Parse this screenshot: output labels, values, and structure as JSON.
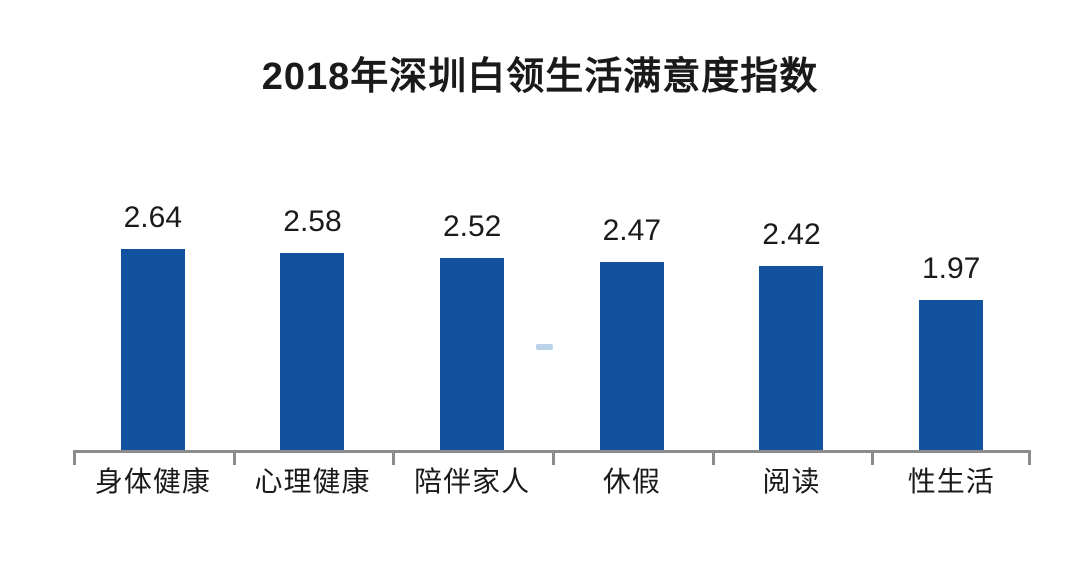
{
  "title": "2018年深圳白领生活满意度指数",
  "colors": {
    "bar": "#11519E",
    "axis": "#8C8C8C",
    "text": "#1A1A1A",
    "watermark": "#AECBE6"
  },
  "chart_data": {
    "type": "bar",
    "title": "2018年深圳白领生活满意度指数",
    "categories": [
      "身体健康",
      "心理健康",
      "陪伴家人",
      "休假",
      "阅读",
      "性生活"
    ],
    "values": [
      2.64,
      2.58,
      2.52,
      2.47,
      2.42,
      1.97
    ],
    "value_labels": [
      "2.64",
      "2.58",
      "2.52",
      "2.47",
      "2.42",
      "1.97"
    ],
    "xlabel": "",
    "ylabel": "",
    "ylim": [
      0,
      3.5
    ],
    "grid": false,
    "legend": null,
    "bar_color": "#11519E",
    "axis_line": "bottom-only"
  }
}
